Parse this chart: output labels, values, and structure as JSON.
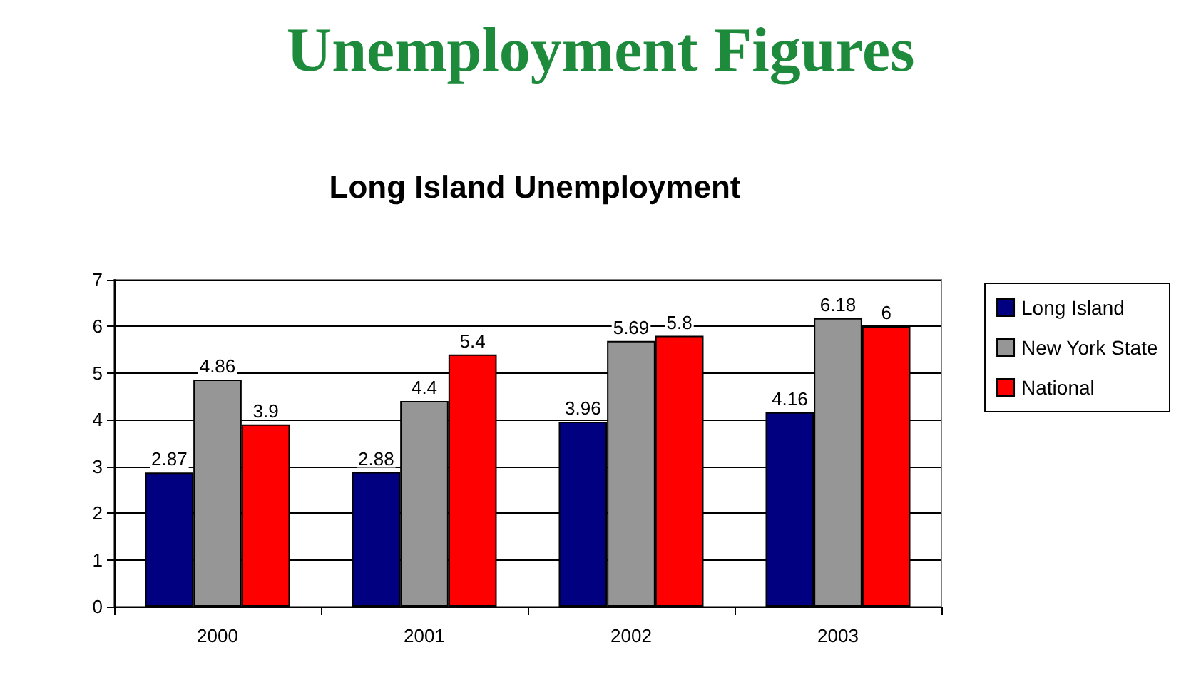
{
  "chart_data": {
    "type": "bar",
    "title": "Unemployment Figures",
    "subtitle": "Long Island Unemployment",
    "categories": [
      "2000",
      "2001",
      "2002",
      "2003"
    ],
    "series": [
      {
        "name": "Long Island",
        "color": "#000080",
        "values": [
          2.87,
          2.88,
          3.96,
          4.16
        ]
      },
      {
        "name": "New York State",
        "color": "#969696",
        "values": [
          4.86,
          4.4,
          5.69,
          6.18
        ]
      },
      {
        "name": "National",
        "color": "#ff0000",
        "values": [
          3.9,
          5.4,
          5.8,
          6
        ]
      }
    ],
    "ylim": [
      0,
      7
    ],
    "yticks": [
      0,
      1,
      2,
      3,
      4,
      5,
      6,
      7
    ],
    "grid": "y",
    "legend": "right",
    "data_labels": true
  }
}
